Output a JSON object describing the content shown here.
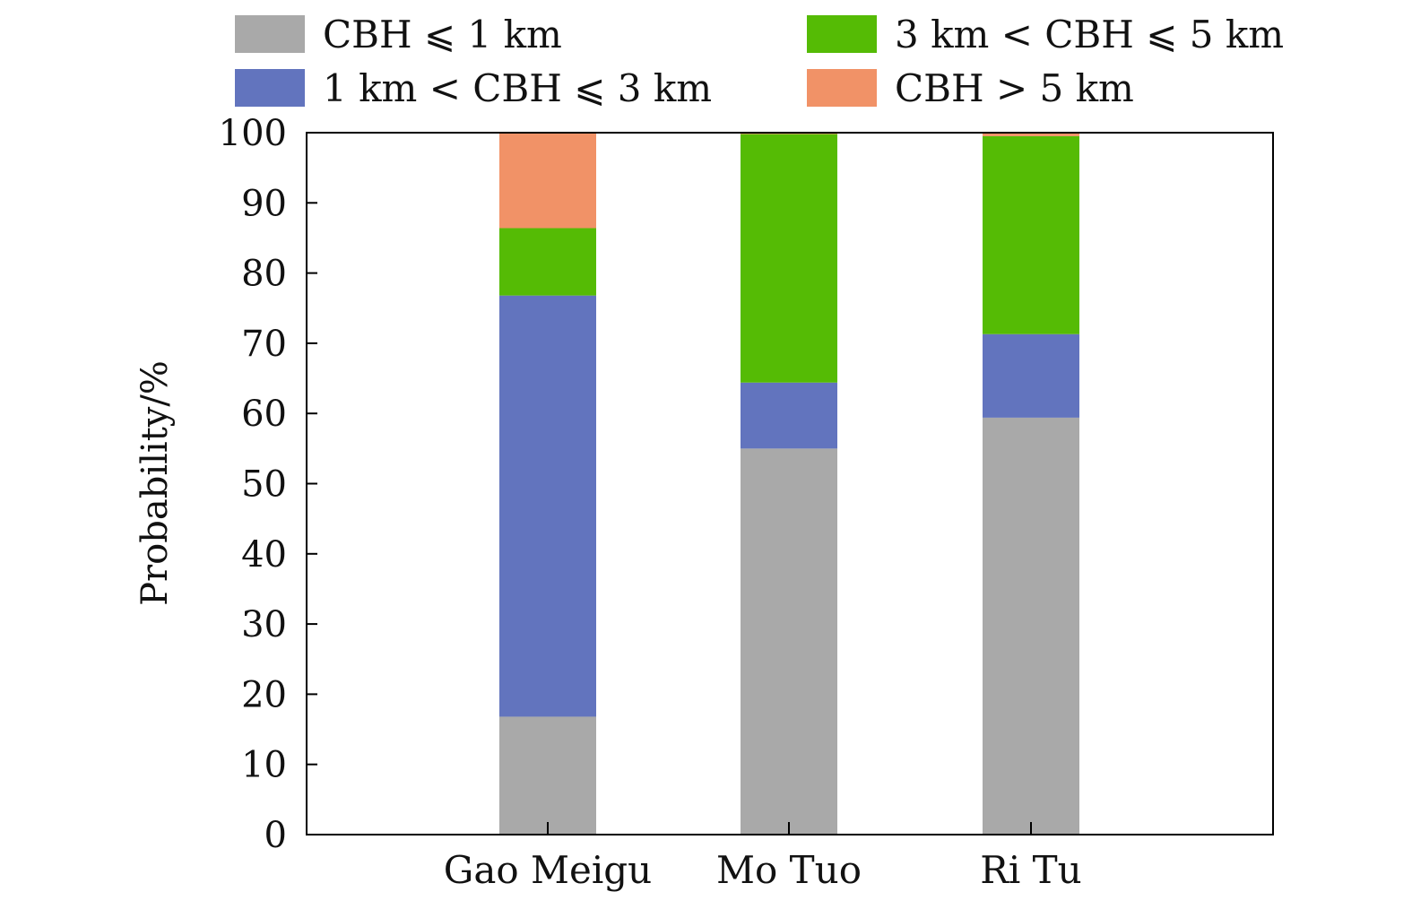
{
  "chart_data": {
    "type": "bar",
    "stacked": true,
    "categories": [
      "Gao Meigu",
      "Mo Tuo",
      "Ri Tu"
    ],
    "series": [
      {
        "name": "CBH ⩽ 1 km",
        "color": "#a9a9a9",
        "values": [
          16.8,
          55.0,
          59.4
        ]
      },
      {
        "name": "1 km < CBH ⩽ 3 km",
        "color": "#6274be",
        "values": [
          60.0,
          9.4,
          11.9
        ]
      },
      {
        "name": "3 km < CBH ⩽ 5 km",
        "color": "#55bb05",
        "values": [
          9.6,
          35.4,
          28.2
        ]
      },
      {
        "name": "CBH > 5 km",
        "color": "#f19267",
        "values": [
          13.6,
          0.2,
          0.5
        ]
      }
    ],
    "title": "",
    "xlabel": "",
    "ylabel": "Probability/%",
    "ylim": [
      0,
      100
    ],
    "yticks": [
      "0",
      "10",
      "20",
      "30",
      "40",
      "50",
      "60",
      "70",
      "80",
      "90",
      "100"
    ],
    "grid": false,
    "legend": "top"
  }
}
